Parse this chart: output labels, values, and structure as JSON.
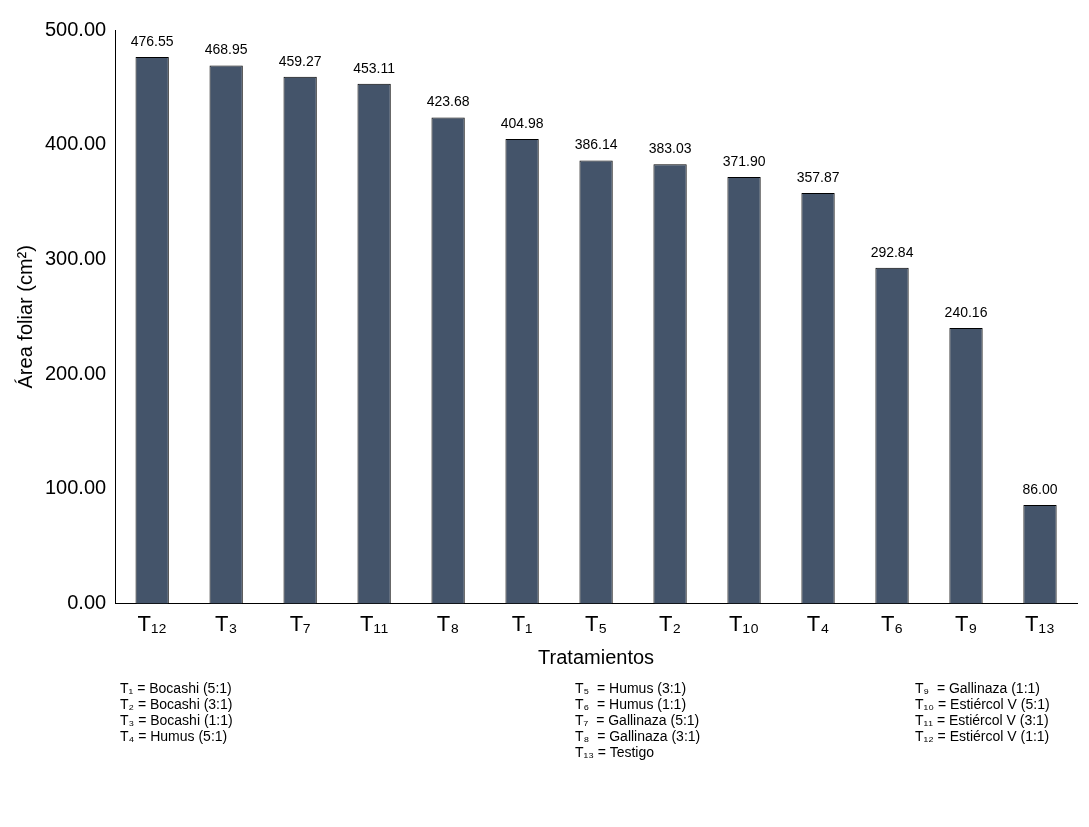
{
  "chart_data": {
    "type": "bar",
    "xlabel": "Tratamientos",
    "ylabel": "Área foliar (cm²)",
    "categories": [
      "T₁₂",
      "T₃",
      "T₇",
      "T₁₁",
      "T₈",
      "T₁",
      "T₅",
      "T₂",
      "T₁₀",
      "T₄",
      "T₆",
      "T₉",
      "T₁₃"
    ],
    "values": [
      476.55,
      468.95,
      459.27,
      453.11,
      423.68,
      404.98,
      386.14,
      383.03,
      371.9,
      357.87,
      292.84,
      240.16,
      86
    ],
    "value_labels": [
      "476.55",
      "468.95",
      "459.27",
      "453.11",
      "423.68",
      "404.98",
      "386.14",
      "383.03",
      "371.90",
      "357.87",
      "292.84",
      "240.16",
      "86.00"
    ],
    "color": "#44546a",
    "ylim": [
      0,
      500
    ],
    "yticks": [
      {
        "value": 0,
        "label": "0.00"
      },
      {
        "value": 100,
        "label": "100.00"
      },
      {
        "value": 200,
        "label": "200.00"
      },
      {
        "value": 300,
        "label": "300.00"
      },
      {
        "value": 400,
        "label": "400.00"
      },
      {
        "value": 500,
        "label": "500.00"
      }
    ],
    "grid": false,
    "legend": false,
    "annotations": [
      "T₁ = Bocashi (5:1)",
      "T₅  = Humus (3:1)",
      "T₉  = Gallinaza (1:1)",
      "T₂ = Bocashi (3:1)",
      "T₆  = Humus (1:1)",
      "T₁₀ = Estiércol V (5:1)",
      "T₃ = Bocashi (1:1)",
      "T₇  = Gallinaza (5:1)",
      "T₁₁ = Estiércol V (3:1)",
      "T₄ = Humus (5:1)",
      "T₈  = Gallinaza (3:1)",
      "T₁₂ = Estiércol V (1:1)",
      "T₁₃ = Testigo"
    ]
  }
}
